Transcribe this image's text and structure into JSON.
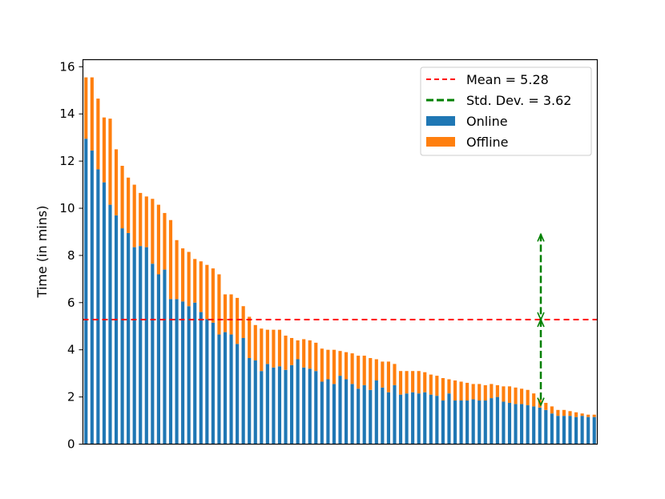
{
  "chart_data": {
    "type": "bar",
    "stacked": true,
    "title": "",
    "xlabel": "",
    "ylabel": "Time (in mins)",
    "ylim": [
      0,
      16.3
    ],
    "yticks": [
      0,
      2,
      4,
      6,
      8,
      10,
      12,
      14,
      16
    ],
    "grid": false,
    "legend_position": "top-right",
    "colors": {
      "online": "#1f77b4",
      "offline": "#ff7f0e",
      "mean": "#ff0000",
      "std": "#008000"
    },
    "series": [
      {
        "name": "Online",
        "values": [
          12.95,
          12.45,
          11.65,
          11.1,
          10.15,
          9.7,
          9.15,
          8.95,
          8.35,
          8.4,
          8.35,
          7.65,
          7.2,
          7.4,
          6.15,
          6.15,
          6.05,
          5.85,
          6.0,
          5.6,
          5.3,
          5.15,
          4.65,
          4.75,
          4.65,
          4.25,
          4.5,
          3.65,
          3.55,
          3.1,
          3.4,
          3.25,
          3.3,
          3.15,
          3.35,
          3.6,
          3.25,
          3.2,
          3.1,
          2.65,
          2.75,
          2.55,
          2.9,
          2.75,
          2.55,
          2.35,
          2.5,
          2.3,
          2.7,
          2.4,
          2.2,
          2.5,
          2.1,
          2.15,
          2.2,
          2.15,
          2.2,
          2.1,
          2.05,
          1.85,
          2.15,
          1.85,
          1.85,
          1.85,
          1.9,
          1.85,
          1.85,
          1.95,
          2.0,
          1.8,
          1.75,
          1.7,
          1.7,
          1.65,
          1.6,
          1.55,
          1.45,
          1.3,
          1.2,
          1.2,
          1.2,
          1.15,
          1.2,
          1.15,
          1.15
        ]
      },
      {
        "name": "Offline",
        "values": [
          2.6,
          3.1,
          3.0,
          2.75,
          3.65,
          2.8,
          2.65,
          2.35,
          2.65,
          2.25,
          2.15,
          2.75,
          2.95,
          2.4,
          3.35,
          2.5,
          2.25,
          2.3,
          1.85,
          2.15,
          2.3,
          2.3,
          2.55,
          1.6,
          1.7,
          1.95,
          1.35,
          1.75,
          1.5,
          1.8,
          1.45,
          1.6,
          1.55,
          1.45,
          1.15,
          0.8,
          1.2,
          1.2,
          1.2,
          1.4,
          1.25,
          1.45,
          1.05,
          1.15,
          1.3,
          1.4,
          1.25,
          1.35,
          0.9,
          1.1,
          1.3,
          0.9,
          1.0,
          0.95,
          0.9,
          0.95,
          0.85,
          0.85,
          0.85,
          0.95,
          0.6,
          0.85,
          0.8,
          0.75,
          0.65,
          0.7,
          0.65,
          0.6,
          0.5,
          0.65,
          0.7,
          0.7,
          0.65,
          0.65,
          0.55,
          0.35,
          0.3,
          0.3,
          0.25,
          0.25,
          0.2,
          0.2,
          0.1,
          0.1,
          0.1
        ]
      }
    ],
    "mean_line": {
      "label": "Mean = 5.28",
      "value": 5.28
    },
    "std_marker": {
      "label": "Std. Dev. = 3.62",
      "value": 3.62,
      "center": 5.28
    }
  }
}
